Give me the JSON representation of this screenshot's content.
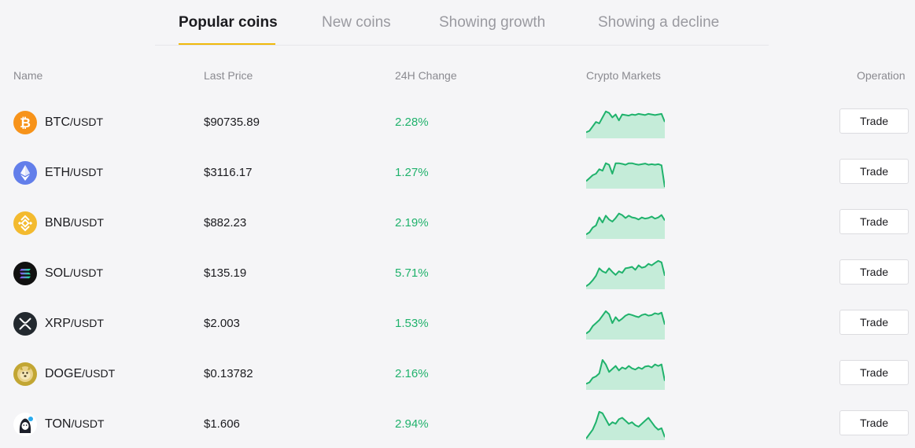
{
  "tabs": [
    {
      "label": "Popular coins"
    },
    {
      "label": "New coins"
    },
    {
      "label": "Showing growth"
    },
    {
      "label": "Showing a decline"
    }
  ],
  "columns": {
    "name": "Name",
    "last_price": "Last Price",
    "change_24h": "24H Change",
    "markets": "Crypto Markets",
    "operation": "Operation"
  },
  "colors": {
    "up": "#20b26c",
    "spark_fill": "#c5ecd9",
    "accent": "#f0b90b"
  },
  "rows": [
    {
      "base": "BTC",
      "quote": "/USDT",
      "price": "$90735.89",
      "change": "2.28%",
      "trade": "Trade",
      "icon": "bitcoin-icon",
      "spark": [
        0.2,
        0.25,
        0.4,
        0.55,
        0.5,
        0.7,
        0.9,
        0.85,
        0.7,
        0.8,
        0.6,
        0.8,
        0.78,
        0.76,
        0.8,
        0.78,
        0.82,
        0.8,
        0.78,
        0.82,
        0.8,
        0.78,
        0.8,
        0.82,
        0.55
      ]
    },
    {
      "base": "ETH",
      "quote": "/USDT",
      "price": "$3116.17",
      "change": "1.27%",
      "trade": "Trade",
      "icon": "ethereum-icon",
      "spark": [
        0.25,
        0.35,
        0.45,
        0.5,
        0.65,
        0.6,
        0.85,
        0.8,
        0.5,
        0.85,
        0.85,
        0.83,
        0.8,
        0.85,
        0.85,
        0.82,
        0.8,
        0.82,
        0.84,
        0.8,
        0.82,
        0.8,
        0.82,
        0.78,
        0.05
      ]
    },
    {
      "base": "BNB",
      "quote": "/USDT",
      "price": "$882.23",
      "change": "2.19%",
      "trade": "Trade",
      "icon": "bnb-icon",
      "spark": [
        0.15,
        0.22,
        0.38,
        0.45,
        0.72,
        0.55,
        0.78,
        0.65,
        0.58,
        0.7,
        0.85,
        0.8,
        0.7,
        0.78,
        0.72,
        0.7,
        0.65,
        0.72,
        0.68,
        0.7,
        0.75,
        0.68,
        0.72,
        0.8,
        0.62
      ]
    },
    {
      "base": "SOL",
      "quote": "/USDT",
      "price": "$135.19",
      "change": "5.71%",
      "trade": "Trade",
      "icon": "solana-icon",
      "spark": [
        0.1,
        0.18,
        0.3,
        0.45,
        0.7,
        0.6,
        0.55,
        0.7,
        0.58,
        0.48,
        0.6,
        0.55,
        0.7,
        0.72,
        0.75,
        0.65,
        0.8,
        0.72,
        0.75,
        0.85,
        0.8,
        0.88,
        0.95,
        0.9,
        0.45
      ]
    },
    {
      "base": "XRP",
      "quote": "/USDT",
      "price": "$2.003",
      "change": "1.53%",
      "trade": "Trade",
      "icon": "xrp-icon",
      "spark": [
        0.2,
        0.28,
        0.45,
        0.55,
        0.65,
        0.8,
        0.95,
        0.85,
        0.55,
        0.75,
        0.62,
        0.7,
        0.8,
        0.85,
        0.82,
        0.78,
        0.75,
        0.82,
        0.85,
        0.8,
        0.82,
        0.88,
        0.85,
        0.9,
        0.5
      ]
    },
    {
      "base": "DOGE",
      "quote": "/USDT",
      "price": "$0.13782",
      "change": "2.16%",
      "trade": "Trade",
      "icon": "dogecoin-icon",
      "spark": [
        0.2,
        0.25,
        0.4,
        0.45,
        0.55,
        1.0,
        0.85,
        0.6,
        0.7,
        0.8,
        0.65,
        0.75,
        0.7,
        0.8,
        0.72,
        0.68,
        0.75,
        0.7,
        0.78,
        0.8,
        0.75,
        0.85,
        0.8,
        0.85,
        0.3
      ]
    },
    {
      "base": "TON",
      "quote": "/USDT",
      "price": "$1.606",
      "change": "2.94%",
      "trade": "Trade",
      "icon": "toncoin-icon",
      "spark": [
        0.05,
        0.2,
        0.35,
        0.6,
        0.95,
        0.9,
        0.7,
        0.5,
        0.6,
        0.55,
        0.7,
        0.75,
        0.65,
        0.55,
        0.6,
        0.5,
        0.45,
        0.55,
        0.65,
        0.75,
        0.6,
        0.45,
        0.35,
        0.4,
        0.1
      ]
    }
  ]
}
